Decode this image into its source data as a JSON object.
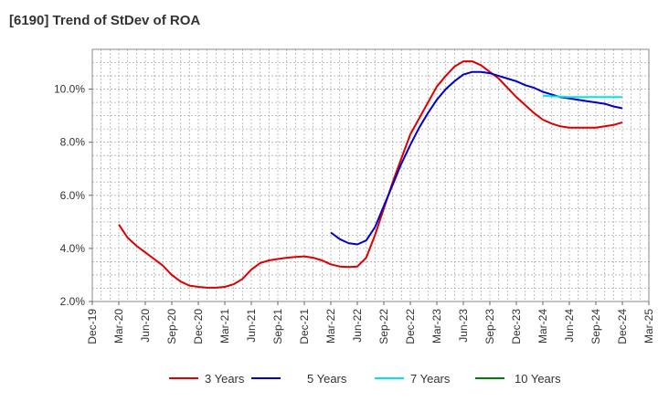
{
  "title": "[6190]  Trend of StDev of ROA",
  "chart_data": {
    "type": "line",
    "title": "[6190]  Trend of StDev of ROA",
    "xlabel": "",
    "ylabel": "",
    "x_tick_labels": [
      "Dec-19",
      "Mar-20",
      "Jun-20",
      "Sep-20",
      "Dec-20",
      "Mar-21",
      "Jun-21",
      "Sep-21",
      "Dec-21",
      "Mar-22",
      "Jun-22",
      "Sep-22",
      "Dec-22",
      "Mar-23",
      "Jun-23",
      "Sep-23",
      "Dec-23",
      "Mar-24",
      "Jun-24",
      "Sep-24",
      "Dec-24",
      "Mar-25"
    ],
    "y_ticks": [
      2.0,
      4.0,
      6.0,
      8.0,
      10.0
    ],
    "y_tick_labels": [
      "2.0%",
      "4.0%",
      "6.0%",
      "8.0%",
      "10.0%"
    ],
    "ylim": [
      2.0,
      11.5
    ],
    "grid": true,
    "legend_position": "bottom",
    "series": [
      {
        "name": "3 Years",
        "color": "#dd0000",
        "points": [
          [
            "Mar-20",
            4.9
          ],
          [
            "Apr-20",
            4.4
          ],
          [
            "May-20",
            4.1
          ],
          [
            "Jun-20",
            3.85
          ],
          [
            "Jul-20",
            3.6
          ],
          [
            "Aug-20",
            3.35
          ],
          [
            "Sep-20",
            3.0
          ],
          [
            "Oct-20",
            2.75
          ],
          [
            "Nov-20",
            2.6
          ],
          [
            "Dec-20",
            2.55
          ],
          [
            "Jan-21",
            2.52
          ],
          [
            "Feb-21",
            2.52
          ],
          [
            "Mar-21",
            2.55
          ],
          [
            "Apr-21",
            2.65
          ],
          [
            "May-21",
            2.85
          ],
          [
            "Jun-21",
            3.2
          ],
          [
            "Jul-21",
            3.45
          ],
          [
            "Aug-21",
            3.55
          ],
          [
            "Sep-21",
            3.6
          ],
          [
            "Oct-21",
            3.65
          ],
          [
            "Nov-21",
            3.68
          ],
          [
            "Dec-21",
            3.7
          ],
          [
            "Jan-22",
            3.65
          ],
          [
            "Feb-22",
            3.55
          ],
          [
            "Mar-22",
            3.4
          ],
          [
            "Apr-22",
            3.32
          ],
          [
            "May-22",
            3.3
          ],
          [
            "Jun-22",
            3.32
          ],
          [
            "Jul-22",
            3.65
          ],
          [
            "Aug-22",
            4.5
          ],
          [
            "Sep-22",
            5.5
          ],
          [
            "Oct-22",
            6.5
          ],
          [
            "Nov-22",
            7.4
          ],
          [
            "Dec-22",
            8.3
          ],
          [
            "Jan-23",
            8.9
          ],
          [
            "Feb-23",
            9.5
          ],
          [
            "Mar-23",
            10.1
          ],
          [
            "Apr-23",
            10.5
          ],
          [
            "May-23",
            10.85
          ],
          [
            "Jun-23",
            11.05
          ],
          [
            "Jul-23",
            11.05
          ],
          [
            "Aug-23",
            10.9
          ],
          [
            "Sep-23",
            10.65
          ],
          [
            "Oct-23",
            10.4
          ],
          [
            "Nov-23",
            10.05
          ],
          [
            "Dec-23",
            9.7
          ],
          [
            "Jan-24",
            9.4
          ],
          [
            "Feb-24",
            9.1
          ],
          [
            "Mar-24",
            8.85
          ],
          [
            "Apr-24",
            8.7
          ],
          [
            "May-24",
            8.6
          ],
          [
            "Jun-24",
            8.55
          ],
          [
            "Jul-24",
            8.55
          ],
          [
            "Aug-24",
            8.55
          ],
          [
            "Sep-24",
            8.55
          ],
          [
            "Oct-24",
            8.6
          ],
          [
            "Nov-24",
            8.65
          ],
          [
            "Dec-24",
            8.75
          ]
        ]
      },
      {
        "name": "5 Years",
        "color": "#0000cc",
        "points": [
          [
            "Mar-22",
            4.6
          ],
          [
            "Apr-22",
            4.35
          ],
          [
            "May-22",
            4.2
          ],
          [
            "Jun-22",
            4.15
          ],
          [
            "Jul-22",
            4.3
          ],
          [
            "Aug-22",
            4.8
          ],
          [
            "Sep-22",
            5.6
          ],
          [
            "Oct-22",
            6.4
          ],
          [
            "Nov-22",
            7.2
          ],
          [
            "Dec-22",
            7.9
          ],
          [
            "Jan-23",
            8.55
          ],
          [
            "Feb-23",
            9.1
          ],
          [
            "Mar-23",
            9.6
          ],
          [
            "Apr-23",
            10.0
          ],
          [
            "May-23",
            10.3
          ],
          [
            "Jun-23",
            10.55
          ],
          [
            "Jul-23",
            10.65
          ],
          [
            "Aug-23",
            10.65
          ],
          [
            "Sep-23",
            10.6
          ],
          [
            "Oct-23",
            10.5
          ],
          [
            "Nov-23",
            10.4
          ],
          [
            "Dec-23",
            10.3
          ],
          [
            "Jan-24",
            10.15
          ],
          [
            "Feb-24",
            10.05
          ],
          [
            "Mar-24",
            9.9
          ],
          [
            "Apr-24",
            9.8
          ],
          [
            "May-24",
            9.7
          ],
          [
            "Jun-24",
            9.65
          ],
          [
            "Jul-24",
            9.6
          ],
          [
            "Aug-24",
            9.55
          ],
          [
            "Sep-24",
            9.5
          ],
          [
            "Oct-24",
            9.45
          ],
          [
            "Nov-24",
            9.35
          ],
          [
            "Dec-24",
            9.28
          ]
        ]
      },
      {
        "name": "7 Years",
        "color": "#00e5e5",
        "points": [
          [
            "Mar-24",
            9.75
          ],
          [
            "Apr-24",
            9.73
          ],
          [
            "May-24",
            9.72
          ],
          [
            "Jun-24",
            9.7
          ],
          [
            "Jul-24",
            9.7
          ],
          [
            "Aug-24",
            9.7
          ],
          [
            "Sep-24",
            9.7
          ],
          [
            "Oct-24",
            9.7
          ],
          [
            "Nov-24",
            9.7
          ],
          [
            "Dec-24",
            9.7
          ]
        ]
      },
      {
        "name": "10 Years",
        "color": "#008000",
        "points": []
      }
    ]
  }
}
